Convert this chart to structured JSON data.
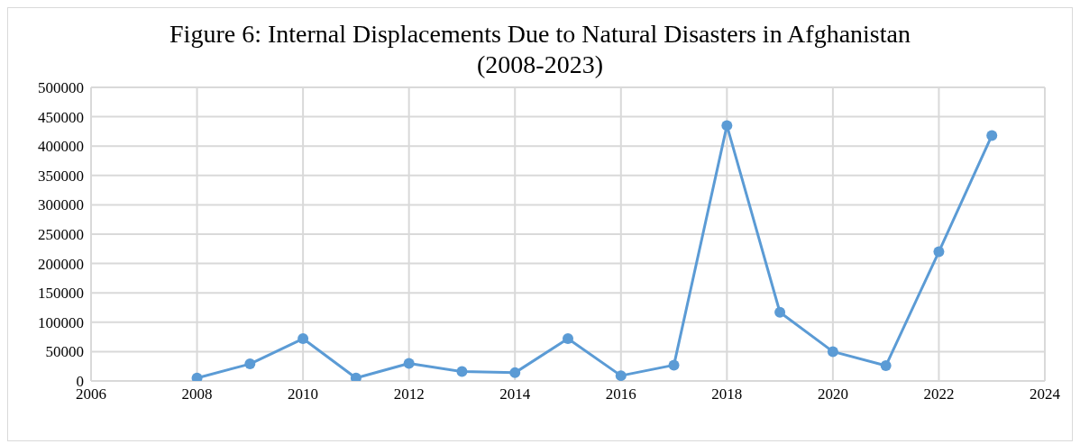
{
  "chart_data": {
    "type": "line",
    "title": "Figure 6: Internal Displacements Due to Natural Disasters in Afghanistan\n(2008-2023)",
    "x": [
      2008,
      2009,
      2010,
      2011,
      2012,
      2013,
      2014,
      2015,
      2016,
      2017,
      2018,
      2019,
      2020,
      2021,
      2022,
      2023
    ],
    "series": [
      {
        "color": "#5b9bd5",
        "values": [
          5000,
          29000,
          72000,
          5000,
          30000,
          16000,
          14000,
          72000,
          9000,
          27000,
          435000,
          117000,
          50000,
          26000,
          220000,
          418000
        ]
      }
    ],
    "xlim": [
      2006,
      2024
    ],
    "xticks": [
      2006,
      2008,
      2010,
      2012,
      2014,
      2016,
      2018,
      2020,
      2022,
      2024
    ],
    "ylim": [
      0,
      500000
    ],
    "yticks": [
      0,
      50000,
      100000,
      150000,
      200000,
      250000,
      300000,
      350000,
      400000,
      450000,
      500000
    ],
    "grid": true,
    "marker": "circle",
    "line_style": "solid",
    "legend": false
  }
}
